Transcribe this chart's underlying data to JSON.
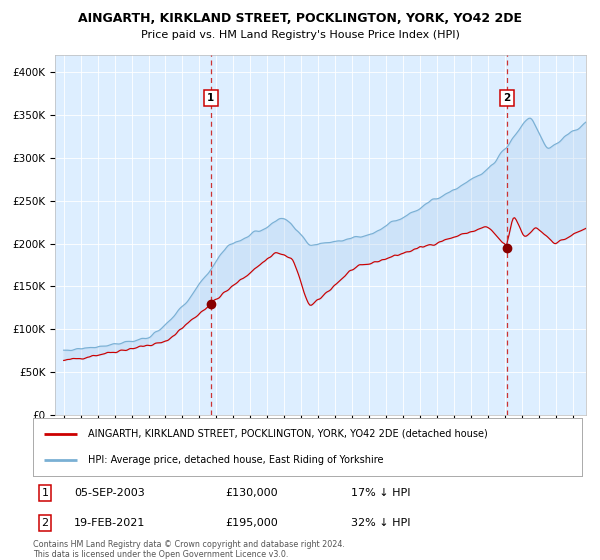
{
  "title1": "AINGARTH, KIRKLAND STREET, POCKLINGTON, YORK, YO42 2DE",
  "title2": "Price paid vs. HM Land Registry's House Price Index (HPI)",
  "bg_color": "#ddeeff",
  "legend_line1": "AINGARTH, KIRKLAND STREET, POCKLINGTON, YORK, YO42 2DE (detached house)",
  "legend_line2": "HPI: Average price, detached house, East Riding of Yorkshire",
  "footer": "Contains HM Land Registry data © Crown copyright and database right 2024.\nThis data is licensed under the Open Government Licence v3.0.",
  "sale1_date": "05-SEP-2003",
  "sale1_price": 130000,
  "sale1_label": "17% ↓ HPI",
  "sale2_date": "19-FEB-2021",
  "sale2_price": 195000,
  "sale2_label": "32% ↓ HPI",
  "red_color": "#cc0000",
  "blue_color": "#7ab0d4",
  "sale1_x": 2003.68,
  "sale2_x": 2021.12,
  "ymin": 0,
  "ymax": 420000
}
